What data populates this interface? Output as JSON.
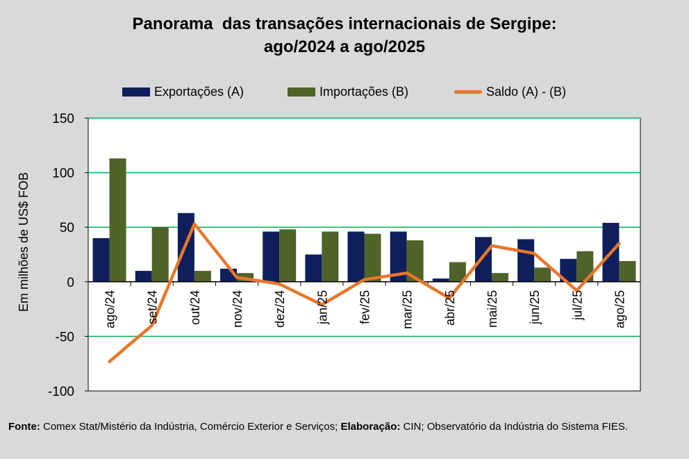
{
  "chart_data": {
    "type": "bar",
    "title_line1": "Panorama  das transações internacionais de Sergipe:",
    "title_line2": "ago/2024 a ago/2025",
    "ylabel": "Em milhões de US$ FOB",
    "xlabel": "",
    "ylim": [
      -100,
      150
    ],
    "yticks": [
      150,
      100,
      50,
      0,
      -50,
      -100
    ],
    "ytick_labels": [
      "150",
      "100",
      "50",
      "0",
      "-50",
      "-100"
    ],
    "grid": true,
    "legend_position": "top-center",
    "categories": [
      "ago/24",
      "set/24",
      "out/24",
      "nov/24",
      "dez/24",
      "jan/25",
      "fev/25",
      "mar/25",
      "abr/25",
      "mai/25",
      "jun/25",
      "jul/25",
      "ago/25"
    ],
    "series": [
      {
        "name": "Exportações (A)",
        "type": "bar",
        "color": "#0e1f5c",
        "values": [
          40,
          10,
          63,
          12,
          46,
          25,
          46,
          46,
          3,
          41,
          39,
          21,
          54
        ]
      },
      {
        "name": "Importações (B)",
        "type": "bar",
        "color": "#4f6228",
        "values": [
          113,
          50,
          10,
          8,
          48,
          46,
          44,
          38,
          18,
          8,
          13,
          28,
          19
        ]
      },
      {
        "name": "Saldo (A) - (B)",
        "type": "line",
        "color": "#e8762b",
        "values": [
          -73,
          -40,
          53,
          4,
          -2,
          -21,
          2,
          8,
          -15,
          33,
          26,
          -8,
          35
        ]
      }
    ]
  },
  "footer": {
    "source_label": "Fonte:",
    "source_text": " Comex Stat/Mistério da Indústria, Comércio Exterior e Serviços; ",
    "elab_label": "Elaboração:",
    "elab_text": " CIN; Observatório da Indústria do Sistema FIES."
  }
}
